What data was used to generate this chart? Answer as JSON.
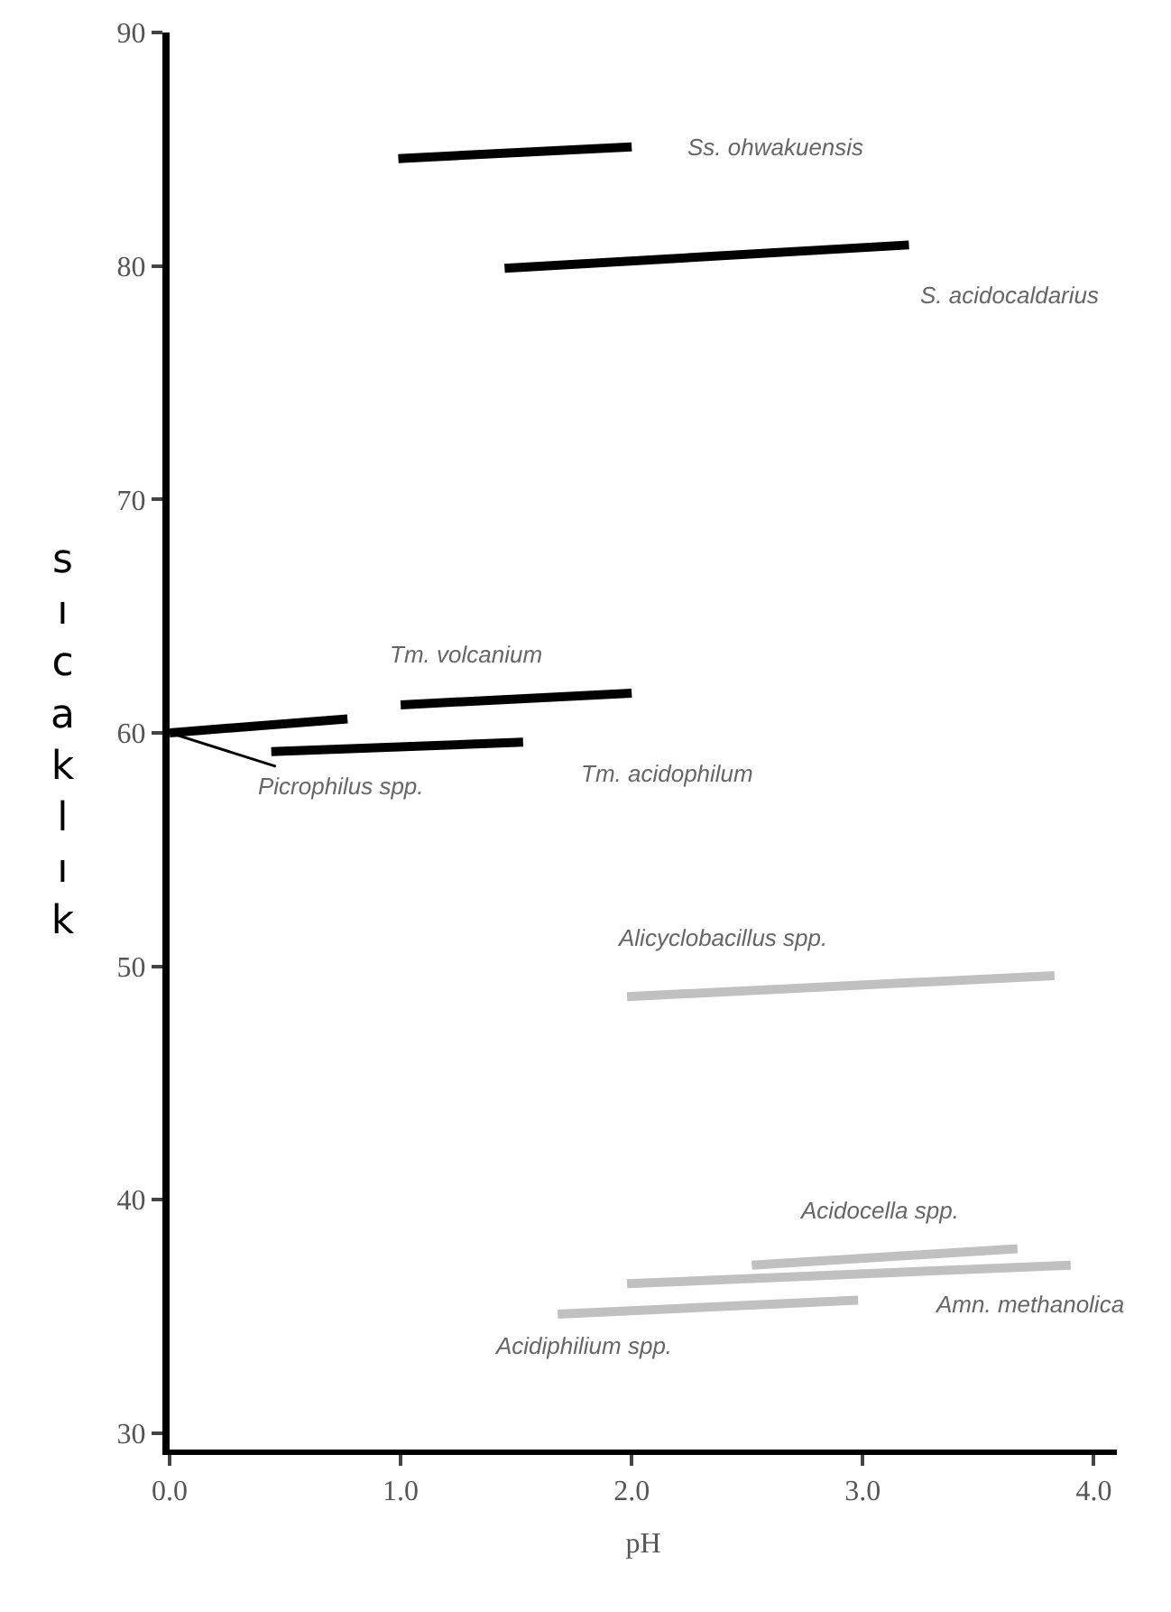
{
  "chart_data": {
    "type": "line",
    "xlabel": "pH",
    "ylabel": "sıcaklık",
    "xlim": [
      0,
      4.1
    ],
    "ylim": [
      29.3,
      90
    ],
    "xticks": [
      {
        "value": 0,
        "label": "0.0"
      },
      {
        "value": 1,
        "label": "1.0"
      },
      {
        "value": 2,
        "label": "2.0"
      },
      {
        "value": 3,
        "label": "3.0"
      },
      {
        "value": 4,
        "label": "4.0"
      }
    ],
    "yticks": [
      30,
      40,
      50,
      60,
      70,
      80,
      90
    ],
    "marker": "none",
    "line_style": "solid",
    "series": [
      {
        "color": "#000000",
        "x": [
          0.99,
          2.0
        ],
        "values": [
          84.6,
          85.1
        ]
      },
      {
        "color": "#000000",
        "x": [
          1.45,
          3.2
        ],
        "values": [
          79.9,
          80.9
        ]
      },
      {
        "color": "#000000",
        "x": [
          1.0,
          2.0
        ],
        "values": [
          61.2,
          61.7
        ]
      },
      {
        "color": "#000000",
        "x": [
          0.0,
          0.77
        ],
        "values": [
          60.0,
          60.6
        ]
      },
      {
        "color": "#000000",
        "x": [
          0.44,
          1.53
        ],
        "values": [
          59.2,
          59.6
        ]
      },
      {
        "color": "#c0c0c0",
        "x": [
          1.98,
          3.83
        ],
        "values": [
          48.7,
          49.6
        ]
      },
      {
        "color": "#c0c0c0",
        "x": [
          2.52,
          3.67
        ],
        "values": [
          37.2,
          37.9
        ]
      },
      {
        "color": "#c0c0c0",
        "x": [
          1.98,
          3.9
        ],
        "values": [
          36.4,
          37.2
        ]
      },
      {
        "color": "#c0c0c0",
        "x": [
          1.68,
          2.98
        ],
        "values": [
          35.1,
          35.7
        ]
      }
    ],
    "annotations": [
      {
        "text": "Ss. ohwakuensis",
        "x": 2.0,
        "y": 85.1
      },
      {
        "text": "S. acidocaldarius",
        "x": 3.2,
        "y": 80.9
      },
      {
        "text": "Tm. volcanium",
        "x": 1.0,
        "y": 61.2
      },
      {
        "text": "Picrophilus spp.",
        "x": 0.0,
        "y": 60.0
      },
      {
        "text": "Tm. acidophilum",
        "x": 1.53,
        "y": 59.6
      },
      {
        "text": "Alicyclobacillus spp.",
        "x": 1.98,
        "y": 48.7
      },
      {
        "text": "Acidocella spp.",
        "x": 3.67,
        "y": 37.9
      },
      {
        "text": "Amn. methanolica",
        "x": 3.9,
        "y": 37.2
      },
      {
        "text": "Acidiphilium spp.",
        "x": 1.68,
        "y": 35.1
      }
    ]
  }
}
